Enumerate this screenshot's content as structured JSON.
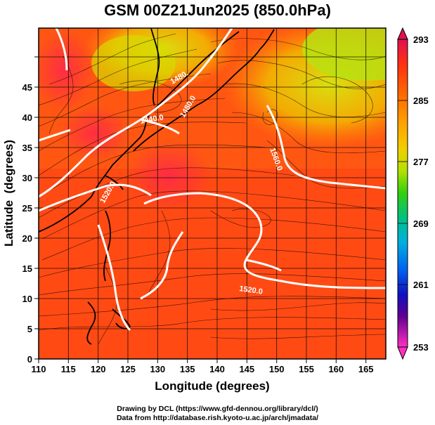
{
  "title": "GSM 00Z21Jun2025 (850.0hPa)",
  "x_axis": {
    "label": "Longitude (degrees)",
    "ticks": [
      "110",
      "115",
      "120",
      "125",
      "130",
      "135",
      "140",
      "145",
      "150",
      "155",
      "160",
      "165"
    ]
  },
  "y_axis": {
    "label": "Latitude  (degrees)",
    "ticks": [
      "0",
      "5",
      "10",
      "15",
      "20",
      "25",
      "30",
      "35",
      "40",
      "45"
    ]
  },
  "colorbar": {
    "labels": [
      "293",
      "285",
      "277",
      "269",
      "261",
      "253"
    ],
    "colors": [
      "#e01050",
      "#ff3010",
      "#ff6a00",
      "#ffa000",
      "#f0d000",
      "#b0e000",
      "#30d010",
      "#00c080",
      "#00b0e0",
      "#0060f0",
      "#1010c0",
      "#600090",
      "#c000a0",
      "#ff30c0"
    ]
  },
  "contours": [
    {
      "label": "1440.0"
    },
    {
      "label": "1480.0"
    },
    {
      "label": "1520.0"
    },
    {
      "label": "1520.0"
    },
    {
      "label": "1560.0"
    },
    {
      "label": "1480."
    }
  ],
  "credits": [
    "Drawing by DCL (https://www.gfd-dennou.org/library/dcl/)",
    "Data from http://database.rish.kyoto-u.ac.jp/arch/jmadata/"
  ]
}
